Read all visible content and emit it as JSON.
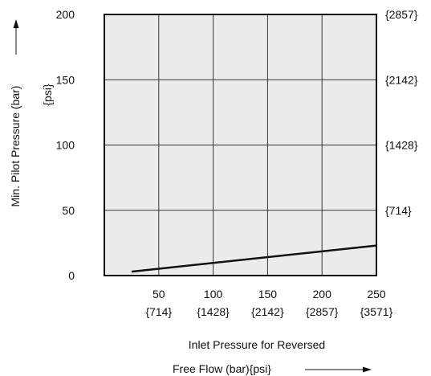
{
  "chart_data": {
    "type": "line",
    "ylabel": "Min. Pilot Pressure (bar)",
    "ylabel_unit": "{psi}",
    "xlabel_line1": "Inlet Pressure for Reversed",
    "xlabel_line2": "Free Flow (bar){psi}",
    "xlim": [
      0,
      250
    ],
    "ylim": [
      0,
      200
    ],
    "x_ticks": [
      {
        "value": 50,
        "label": "50",
        "psi": "{714}"
      },
      {
        "value": 100,
        "label": "100",
        "psi": "{1428}"
      },
      {
        "value": 150,
        "label": "150",
        "psi": "{2142}"
      },
      {
        "value": 200,
        "label": "200",
        "psi": "{2857}"
      },
      {
        "value": 250,
        "label": "250",
        "psi": "{3571}"
      }
    ],
    "y_ticks": [
      {
        "value": 0,
        "label": "0"
      },
      {
        "value": 50,
        "label": "50"
      },
      {
        "value": 100,
        "label": "100"
      },
      {
        "value": 150,
        "label": "150"
      },
      {
        "value": 200,
        "label": "200"
      }
    ],
    "y_ticks_right": [
      {
        "value": 50,
        "label": "{714}"
      },
      {
        "value": 100,
        "label": "{1428}"
      },
      {
        "value": 150,
        "label": "{2142}"
      },
      {
        "value": 200,
        "label": "{2857}"
      }
    ],
    "series": [
      {
        "x": [
          25,
          250
        ],
        "y": [
          3,
          23
        ]
      }
    ],
    "grid": true,
    "colors": {
      "plot_background": "#ececec",
      "line": "#111111",
      "grid": "#333333"
    }
  }
}
